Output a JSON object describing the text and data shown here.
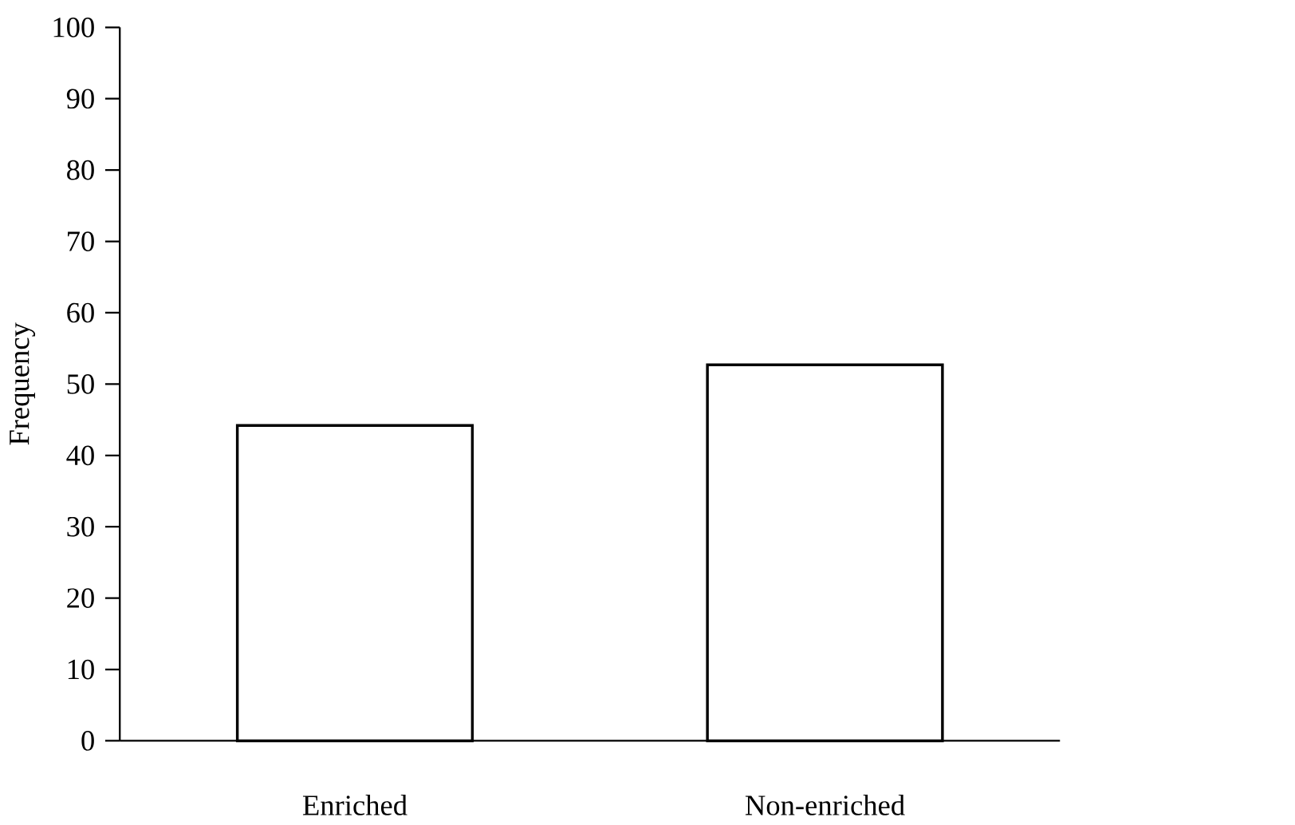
{
  "chart_data": {
    "type": "bar",
    "ylabel": "Frequency",
    "categories": [
      "Enriched",
      "Non-enriched"
    ],
    "values": [
      44.2,
      52.7
    ],
    "color": "#ffffff",
    "ylim": [
      0,
      100
    ],
    "yticks": [
      0,
      10,
      20,
      30,
      40,
      50,
      60,
      70,
      80,
      90,
      100
    ]
  }
}
